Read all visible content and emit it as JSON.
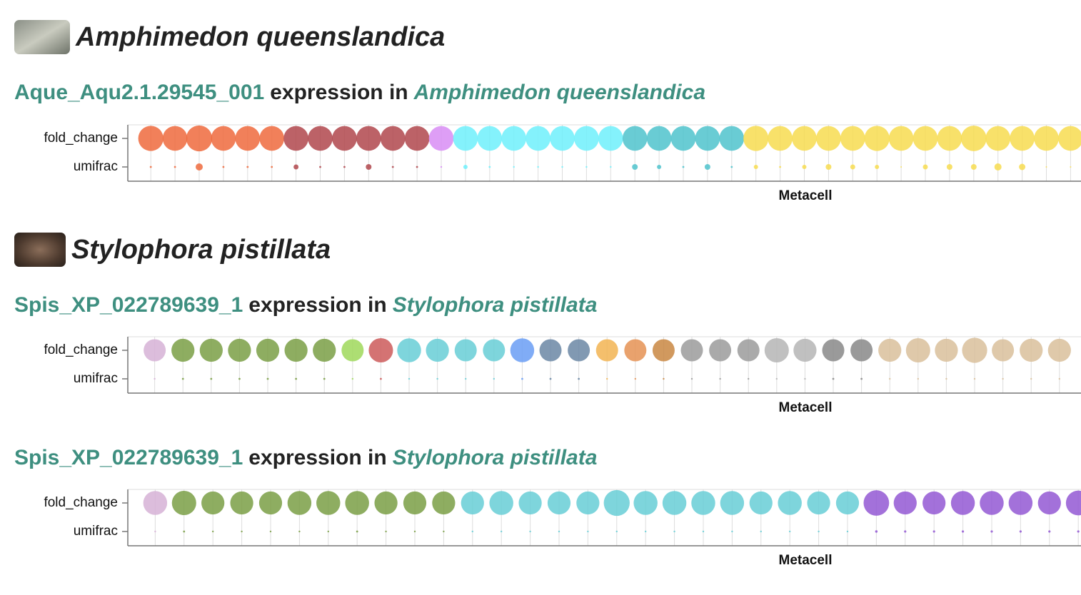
{
  "sections": [
    {
      "title": "Amphimedon queenslandica"
    },
    {
      "title": "Stylophora pistillata"
    }
  ],
  "headings": [
    {
      "gene": "Aque_Aqu2.1.29545_001",
      "text": "expression in",
      "species": "Amphimedon queenslandica"
    },
    {
      "gene": "Spis_XP_022789639_1",
      "text": "expression in",
      "species": "Stylophora pistillata"
    },
    {
      "gene": "Spis_XP_022789639_1",
      "text": "expression in",
      "species": "Stylophora pistillata"
    }
  ],
  "chart_data": [
    {
      "type": "dot",
      "x_label": "Metacell",
      "colors": [
        "#ee6a3d",
        "#ee6a3d",
        "#ee6a3d",
        "#ee6a3d",
        "#ee6a3d",
        "#ee6a3d",
        "#b0474c",
        "#b0474c",
        "#b0474c",
        "#b0474c",
        "#b0474c",
        "#b0474c",
        "#d88df5",
        "#6ff0fb",
        "#6ff0fb",
        "#6ff0fb",
        "#6ff0fb",
        "#6ff0fb",
        "#6ff0fb",
        "#6ff0fb",
        "#4fc3cc",
        "#4fc3cc",
        "#4fc3cc",
        "#4fc3cc",
        "#4fc3cc",
        "#f7dc50",
        "#f7dc50",
        "#f7dc50",
        "#f7dc50",
        "#f7dc50",
        "#f7dc50",
        "#f7dc50",
        "#f7dc50",
        "#f7dc50",
        "#f7dc50",
        "#f7dc50",
        "#f7dc50",
        "#f7dc50",
        "#f7dc50"
      ],
      "series": [
        {
          "name": "fold_change",
          "values": [
            3.1,
            3.0,
            3.3,
            3.0,
            3.0,
            3.0,
            3.0,
            3.0,
            3.0,
            3.0,
            3.0,
            3.0,
            3.0,
            3.0,
            3.0,
            3.0,
            3.0,
            3.0,
            3.0,
            3.0,
            3.0,
            3.0,
            3.0,
            3.0,
            3.0,
            3.1,
            3.0,
            3.0,
            3.0,
            3.0,
            3.1,
            3.0,
            3.0,
            3.0,
            3.2,
            3.0,
            3.0,
            3.0,
            3.0
          ]
        },
        {
          "name": "umifrac",
          "values": [
            0.02,
            0.02,
            0.25,
            0.02,
            0.02,
            0.02,
            0.12,
            0.02,
            0.02,
            0.16,
            0.02,
            0.02,
            0.015,
            0.09,
            0.02,
            0.015,
            0.015,
            0.015,
            0.015,
            0.015,
            0.16,
            0.09,
            0.02,
            0.16,
            0.02,
            0.09,
            0.02,
            0.09,
            0.16,
            0.12,
            0.09,
            0.01,
            0.12,
            0.16,
            0.16,
            0.25,
            0.2,
            0.01,
            0.01
          ]
        }
      ]
    },
    {
      "type": "dot",
      "x_label": "Metacell",
      "colors": [
        "#d6b1d6",
        "#7a9f45",
        "#7a9f45",
        "#7a9f45",
        "#7a9f45",
        "#7a9f45",
        "#7a9f45",
        "#9fd85a",
        "#cc5a5a",
        "#67ced6",
        "#67ced6",
        "#67ced6",
        "#67ced6",
        "#6a9ef5",
        "#6b87a5",
        "#6b87a5",
        "#f2b452",
        "#e59253",
        "#c98742",
        "#9b9b9b",
        "#9b9b9b",
        "#9b9b9b",
        "#b5b5b5",
        "#b5b5b5",
        "#888888",
        "#888888",
        "#d9bf9b",
        "#d9bf9b",
        "#d9bf9b",
        "#d9bf9b",
        "#d9bf9b",
        "#d9bf9b",
        "#d9bf9b"
      ],
      "series": [
        {
          "name": "fold_change",
          "values": [
            2.4,
            2.6,
            2.6,
            2.6,
            2.6,
            2.6,
            2.6,
            2.4,
            2.9,
            2.8,
            2.6,
            2.4,
            2.4,
            2.8,
            2.4,
            2.4,
            2.4,
            2.4,
            2.4,
            2.4,
            2.4,
            2.4,
            2.9,
            2.6,
            2.4,
            2.4,
            2.6,
            2.9,
            2.6,
            3.1,
            2.4,
            2.6,
            2.6
          ]
        },
        {
          "name": "umifrac",
          "values": [
            0.015,
            0.02,
            0.02,
            0.02,
            0.02,
            0.02,
            0.02,
            0.015,
            0.02,
            0.015,
            0.015,
            0.015,
            0.015,
            0.02,
            0.02,
            0.02,
            0.015,
            0.015,
            0.015,
            0.015,
            0.015,
            0.015,
            0.015,
            0.015,
            0.02,
            0.02,
            0.015,
            0.015,
            0.015,
            0.015,
            0.015,
            0.015,
            0.015
          ]
        }
      ]
    },
    {
      "type": "dot",
      "x_label": "Metacell",
      "colors": [
        "#d6b1d6",
        "#7a9f45",
        "#7a9f45",
        "#7a9f45",
        "#7a9f45",
        "#7a9f45",
        "#7a9f45",
        "#7a9f45",
        "#7a9f45",
        "#7a9f45",
        "#7a9f45",
        "#67ced6",
        "#67ced6",
        "#67ced6",
        "#67ced6",
        "#67ced6",
        "#67ced6",
        "#67ced6",
        "#67ced6",
        "#67ced6",
        "#67ced6",
        "#67ced6",
        "#67ced6",
        "#67ced6",
        "#67ced6",
        "#9358d4",
        "#9358d4",
        "#9358d4",
        "#9358d4",
        "#9358d4",
        "#9358d4",
        "#9358d4",
        "#9358d4"
      ],
      "series": [
        {
          "name": "fold_change",
          "values": [
            2.8,
            2.9,
            2.6,
            2.6,
            2.6,
            2.8,
            2.8,
            2.8,
            2.6,
            2.6,
            2.6,
            2.6,
            2.8,
            2.6,
            2.6,
            2.6,
            3.3,
            2.8,
            2.8,
            2.8,
            2.8,
            2.6,
            2.8,
            2.6,
            2.6,
            3.2,
            2.6,
            2.6,
            2.8,
            2.8,
            2.8,
            2.6,
            3.0
          ]
        },
        {
          "name": "umifrac",
          "values": [
            0.015,
            0.02,
            0.015,
            0.015,
            0.015,
            0.015,
            0.015,
            0.02,
            0.015,
            0.015,
            0.015,
            0.015,
            0.015,
            0.015,
            0.015,
            0.015,
            0.015,
            0.015,
            0.015,
            0.015,
            0.015,
            0.015,
            0.015,
            0.015,
            0.015,
            0.03,
            0.025,
            0.025,
            0.025,
            0.025,
            0.025,
            0.025,
            0.025
          ]
        }
      ]
    }
  ]
}
